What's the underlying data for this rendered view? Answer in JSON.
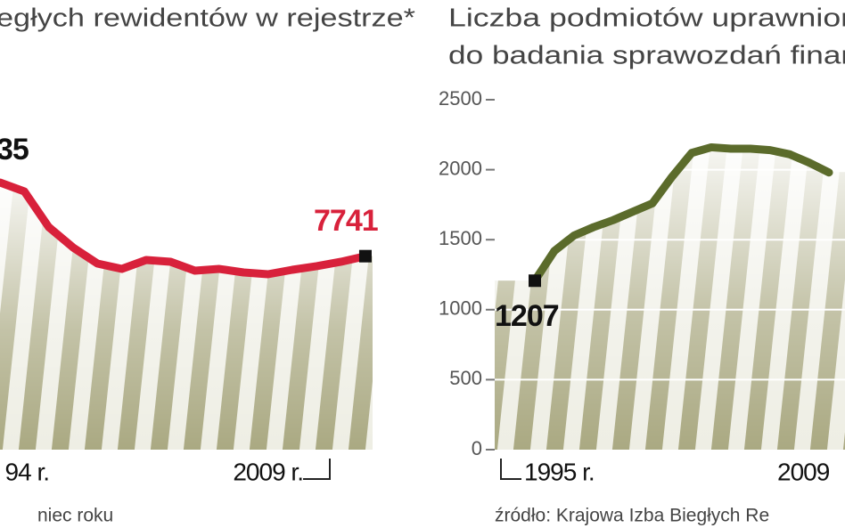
{
  "chart_data": [
    {
      "type": "line",
      "title": "egłych rewidentów w rejestrze*",
      "footnote": "niec roku",
      "annotation": "35",
      "categories": [
        "94 r.",
        null,
        null,
        null,
        null,
        null,
        null,
        null,
        null,
        null,
        null,
        null,
        null,
        null,
        null,
        "2009 r."
      ],
      "series": [
        {
          "name": null,
          "color": "#d8213b",
          "values": [
            10687,
            10331,
            8906,
            8087,
            7445,
            7231,
            7588,
            7517,
            7160,
            7231,
            7089,
            7018,
            7196,
            7339,
            7517,
            7741
          ]
        }
      ],
      "ylim": [
        0,
        14000
      ]
    },
    {
      "type": "line",
      "title": [
        "Liczba podmiotów uprawnion",
        "do badania sprawozdań finan"
      ],
      "source": "źródło: Krajowa Izba Biegłych Re",
      "categories": [
        "1995 r.",
        null,
        null,
        null,
        null,
        null,
        null,
        null,
        null,
        null,
        null,
        null,
        null,
        null,
        "2009",
        null
      ],
      "series": [
        {
          "name": null,
          "color": "#5b6b2b",
          "values": [
            1207,
            1420,
            1530,
            1590,
            1640,
            1700,
            1760,
            1950,
            2120,
            2160,
            2150,
            2150,
            2140,
            2110,
            2050,
            1980
          ]
        }
      ],
      "ylim": [
        0,
        2500
      ],
      "yticks": [
        0,
        500,
        1000,
        1500,
        2000,
        2500
      ],
      "grid": true
    }
  ]
}
